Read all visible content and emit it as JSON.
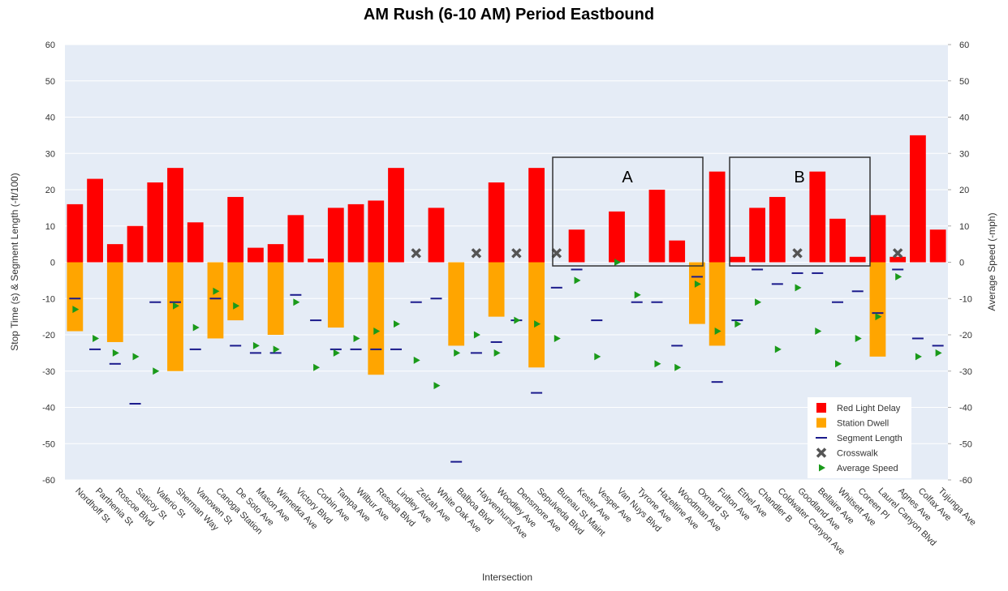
{
  "chart_data": {
    "type": "bar",
    "title": "AM Rush (6-10 AM) Period Eastbound",
    "x_label": "Intersection",
    "y_label": "Stop Time (s) & Segment Length (-ft/100)",
    "y2_label": "Average Speed (-mph)",
    "categories": [
      "Nordhoff St",
      "Parthenia St",
      "Roscoe Blvd",
      "Saticoy St",
      "Valerio St",
      "Sherman Way",
      "Vanowen St",
      "Canoga Station",
      "De Soto Ave",
      "Mason Ave",
      "Winnetka Ave",
      "Victory Blvd",
      "Corbin Ave",
      "Tampa Ave",
      "Wilbur Ave",
      "Reseda Blvd",
      "Lindley Ave",
      "Zelzah Ave",
      "White Oak Ave",
      "Balboa Blvd",
      "Hayvenhurst Ave",
      "Woodley Ave",
      "Densmore Ave",
      "Sepulveda Blvd",
      "Bureau St Maint",
      "Kester Ave",
      "Vesper Ave",
      "Van Nuys Blvd",
      "Tyrone Ave",
      "Hazeltine Ave",
      "Woodman Ave",
      "Oxnard St",
      "Fulton Ave",
      "Ethel Ave",
      "Chandler B",
      "Coldwater Canyon Ave",
      "Goodland Ave",
      "Bellaire Ave",
      "Whitsett Ave",
      "Coreen Pl",
      "Laurel Canyon Blvd",
      "Agnes Ave",
      "Colfax Ave",
      "Tujunga Ave"
    ],
    "series": [
      {
        "name": "Red Light Delay",
        "color": "#ff0000",
        "marker": "bar",
        "values": [
          16,
          23,
          5,
          10,
          22,
          26,
          11,
          null,
          18,
          4,
          5,
          13,
          1,
          15,
          16,
          17,
          26,
          null,
          15,
          null,
          null,
          22,
          null,
          26,
          null,
          9,
          null,
          14,
          null,
          20,
          6,
          null,
          25,
          1.5,
          15,
          18,
          null,
          25,
          12,
          1.5,
          13,
          1.5,
          35,
          9
        ]
      },
      {
        "name": "Station Dwell",
        "color": "#ffa500",
        "marker": "bar",
        "values": [
          -19,
          null,
          -22,
          null,
          null,
          -30,
          null,
          -21,
          -16,
          null,
          -20,
          null,
          null,
          -18,
          null,
          -31,
          null,
          null,
          null,
          -23,
          null,
          -15,
          null,
          -29,
          null,
          null,
          null,
          null,
          null,
          null,
          null,
          -17,
          -23,
          null,
          null,
          null,
          null,
          null,
          null,
          null,
          -26,
          null,
          null,
          null
        ]
      },
      {
        "name": "Segment Length",
        "color": "#1a1a8c",
        "marker": "dash",
        "values": [
          -10,
          -24,
          -28,
          -39,
          -11,
          -11,
          -24,
          -10,
          -23,
          -25,
          -25,
          -9,
          -16,
          -24,
          -24,
          -24,
          -24,
          -11,
          -10,
          -55,
          -25,
          -22,
          -16,
          -36,
          -7,
          -2,
          -16,
          null,
          -11,
          -11,
          -23,
          -4,
          -33,
          -16,
          -2,
          -6,
          -3,
          -3,
          -11,
          -8,
          -14,
          -2,
          -21,
          -23
        ]
      },
      {
        "name": "Crosswalk",
        "color": "#555555",
        "marker": "x",
        "values": [
          null,
          null,
          null,
          null,
          null,
          null,
          null,
          null,
          null,
          null,
          null,
          null,
          null,
          null,
          null,
          null,
          null,
          2.5,
          null,
          null,
          2.5,
          null,
          2.5,
          null,
          2.5,
          null,
          null,
          null,
          null,
          null,
          null,
          null,
          null,
          null,
          null,
          null,
          2.5,
          null,
          null,
          null,
          null,
          2.5,
          null,
          null
        ]
      },
      {
        "name": "Average Speed",
        "color": "#1a9a1a",
        "marker": "triangle",
        "axis": "y2",
        "values": [
          -13,
          -21,
          -25,
          -26,
          -30,
          -12,
          -18,
          -8,
          -12,
          -23,
          -24,
          -11,
          -29,
          -25,
          -21,
          -19,
          -17,
          -27,
          -34,
          -25,
          -20,
          -25,
          -16,
          -17,
          -21,
          -5,
          -26,
          0,
          -9,
          -28,
          -29,
          -6,
          -19,
          -17,
          -11,
          -24,
          -7,
          -19,
          -28,
          -21,
          -15,
          -4,
          -26,
          -25
        ]
      }
    ],
    "ylim": [
      -60,
      60
    ],
    "yticks": [
      -60,
      -50,
      -40,
      -30,
      -20,
      -10,
      0,
      10,
      20,
      30,
      40,
      50,
      60
    ],
    "y2lim": [
      -60,
      60
    ],
    "y2ticks": [
      -60,
      -50,
      -40,
      -30,
      -20,
      -10,
      0,
      10,
      20,
      30,
      40,
      50,
      60
    ],
    "grid": true,
    "legend_position": "lower right",
    "annotations": [
      "A",
      "B"
    ]
  }
}
